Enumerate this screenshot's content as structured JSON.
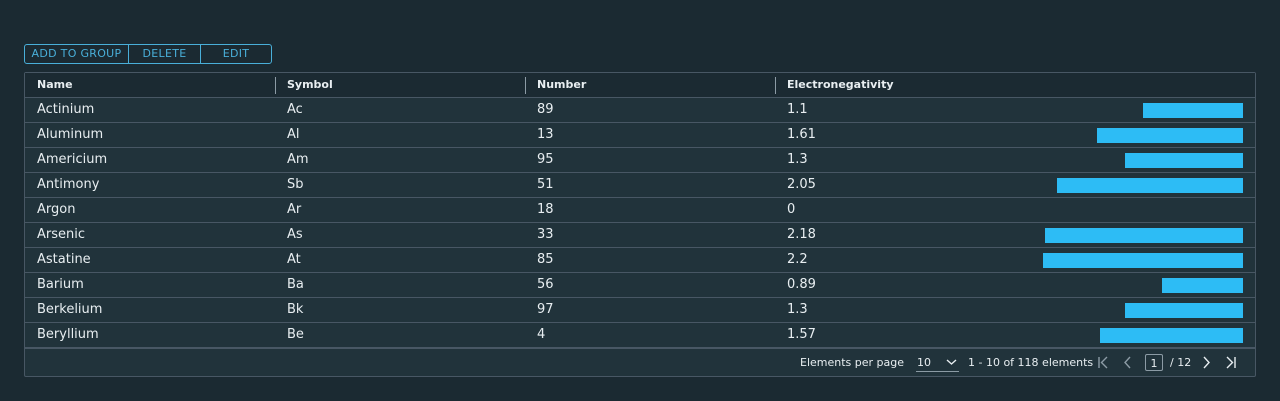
{
  "toolbar": {
    "add_label": "ADD TO GROUP",
    "delete_label": "DELETE",
    "edit_label": "EDIT"
  },
  "columns": [
    "Name",
    "Symbol",
    "Number",
    "Electronegativity"
  ],
  "rows": [
    {
      "name": "Actinium",
      "symbol": "Ac",
      "number": "89",
      "en": "1.1"
    },
    {
      "name": "Aluminum",
      "symbol": "Al",
      "number": "13",
      "en": "1.61"
    },
    {
      "name": "Americium",
      "symbol": "Am",
      "number": "95",
      "en": "1.3"
    },
    {
      "name": "Antimony",
      "symbol": "Sb",
      "number": "51",
      "en": "2.05"
    },
    {
      "name": "Argon",
      "symbol": "Ar",
      "number": "18",
      "en": "0"
    },
    {
      "name": "Arsenic",
      "symbol": "As",
      "number": "33",
      "en": "2.18"
    },
    {
      "name": "Astatine",
      "symbol": "At",
      "number": "85",
      "en": "2.2"
    },
    {
      "name": "Barium",
      "symbol": "Ba",
      "number": "56",
      "en": "0.89"
    },
    {
      "name": "Berkelium",
      "symbol": "Bk",
      "number": "97",
      "en": "1.3"
    },
    {
      "name": "Beryllium",
      "symbol": "Be",
      "number": "4",
      "en": "1.57"
    }
  ],
  "bar_scale_max": 2.2,
  "bar_color": "#2dbcf5",
  "footer": {
    "per_page_label": "Elements per page",
    "per_page_value": "10",
    "range_text": "1 - 10 of 118 elements",
    "current_page": "1",
    "total_pages": "/ 12"
  },
  "icons": {
    "first": "first-page-icon",
    "prev": "chevron-left-icon",
    "next": "chevron-right-icon",
    "last": "last-page-icon",
    "select": "chevron-down-icon"
  }
}
